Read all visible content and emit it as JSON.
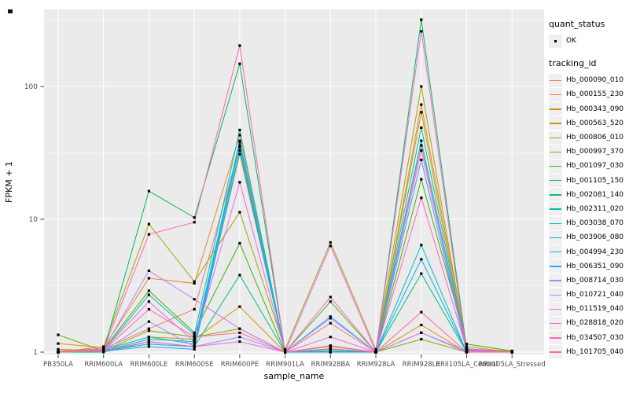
{
  "figure": {
    "panel_bg": "#EBEBEB",
    "grid_color": "#FFFFFF",
    "tick_color": "#333333",
    "axis_text_color": "#4D4D4D",
    "point_color": "#000000"
  },
  "legend": {
    "quant_status_title": "quant_status",
    "quant_status_items": [
      {
        "label": "OK"
      }
    ],
    "tracking_id_title": "tracking_id"
  },
  "chart_data": {
    "type": "line",
    "title": "",
    "xlabel": "sample_name",
    "ylabel": "FPKM + 1",
    "y_scale": "log10",
    "y_ticks": [
      1,
      10,
      100
    ],
    "y_tick_labels": [
      "1",
      "10",
      "100"
    ],
    "y_minor_ticks": [
      3.1623,
      31.623,
      316.23
    ],
    "ylim": [
      0.95,
      380
    ],
    "grid": true,
    "legend_position": "right",
    "point_marker": "filled-square",
    "categories": [
      "PB350LA",
      "RRIM600LA",
      "RRIM600LE",
      "RRIM600SE",
      "RRIM600PE",
      "RRIM901LA",
      "RRIM928BA",
      "RRIM928LA",
      "RRIM928LE",
      "RRII105LA_Control",
      "RRII105LA_Stressed"
    ],
    "series": [
      {
        "name": "Hb_000090_010",
        "color": "#F8766D",
        "values": [
          1.02,
          1.06,
          1.5,
          2.1,
          35,
          1.0,
          1.65,
          1.0,
          36,
          1.05,
          1.0
        ]
      },
      {
        "name": "Hb_000155_230",
        "color": "#EA8331",
        "values": [
          1.16,
          1.08,
          3.6,
          3.3,
          43,
          1.0,
          1.12,
          1.0,
          73,
          1.1,
          1.0
        ]
      },
      {
        "name": "Hb_000343_090",
        "color": "#D89000",
        "values": [
          1.0,
          1.04,
          1.3,
          1.25,
          2.2,
          1.0,
          1.05,
          1.0,
          1.6,
          1.0,
          1.0
        ]
      },
      {
        "name": "Hb_000563_520",
        "color": "#C09B00",
        "values": [
          1.05,
          1.02,
          1.15,
          1.1,
          31,
          1.0,
          1.02,
          1.0,
          64,
          1.02,
          1.0
        ]
      },
      {
        "name": "Hb_000806_010",
        "color": "#A3A500",
        "values": [
          1.0,
          1.1,
          9.2,
          3.4,
          11.3,
          1.05,
          6.7,
          1.05,
          100,
          1.05,
          1.02
        ]
      },
      {
        "name": "Hb_000997_370",
        "color": "#7CAE00",
        "values": [
          1.35,
          1.02,
          1.45,
          1.3,
          1.5,
          1.0,
          1.06,
          1.0,
          1.25,
          1.0,
          1.0
        ]
      },
      {
        "name": "Hb_001097_030",
        "color": "#39B600",
        "values": [
          1.0,
          1.05,
          2.9,
          1.4,
          6.6,
          1.0,
          2.4,
          1.0,
          20,
          1.15,
          1.02
        ]
      },
      {
        "name": "Hb_001105_150",
        "color": "#00BB4E",
        "values": [
          1.0,
          1.02,
          16.3,
          10.3,
          148,
          1.0,
          1.0,
          1.0,
          318,
          1.06,
          1.0
        ]
      },
      {
        "name": "Hb_002081_140",
        "color": "#00BF7D",
        "values": [
          1.0,
          1.0,
          1.2,
          1.1,
          3.8,
          1.0,
          1.0,
          1.0,
          3.9,
          1.0,
          1.0
        ]
      },
      {
        "name": "Hb_002311_020",
        "color": "#00C1A3",
        "values": [
          1.0,
          1.03,
          2.7,
          1.35,
          47,
          1.0,
          1.02,
          1.0,
          49,
          1.04,
          1.0
        ]
      },
      {
        "name": "Hb_003038_070",
        "color": "#00BFC4",
        "values": [
          1.0,
          1.02,
          1.25,
          1.2,
          39,
          1.0,
          1.0,
          1.0,
          6.4,
          1.0,
          1.0
        ]
      },
      {
        "name": "Hb_003906_080",
        "color": "#00BBDA",
        "values": [
          1.0,
          1.04,
          1.3,
          1.15,
          38,
          1.0,
          1.02,
          1.0,
          39,
          1.02,
          1.0
        ]
      },
      {
        "name": "Hb_004994_230",
        "color": "#00B0F6",
        "values": [
          1.0,
          1.02,
          1.1,
          1.05,
          33,
          1.0,
          1.0,
          1.0,
          5.0,
          1.0,
          1.0
        ]
      },
      {
        "name": "Hb_006351_090",
        "color": "#35A2FF",
        "values": [
          1.0,
          1.03,
          1.15,
          1.1,
          36,
          1.0,
          1.85,
          1.0,
          28,
          1.02,
          1.0
        ]
      },
      {
        "name": "Hb_008714_030",
        "color": "#9590FF",
        "values": [
          1.0,
          1.02,
          1.7,
          1.1,
          1.3,
          1.0,
          1.8,
          1.0,
          1.4,
          1.0,
          1.0
        ]
      },
      {
        "name": "Hb_010721_040",
        "color": "#C77CFF",
        "values": [
          1.0,
          1.05,
          4.1,
          2.5,
          1.5,
          1.0,
          1.1,
          1.0,
          1.4,
          1.02,
          1.0
        ]
      },
      {
        "name": "Hb_011519_040",
        "color": "#E76BF3",
        "values": [
          1.0,
          1.04,
          2.4,
          1.2,
          19,
          1.0,
          6.3,
          1.0,
          33,
          1.03,
          1.0
        ]
      },
      {
        "name": "Hb_028818_020",
        "color": "#FA62DB",
        "values": [
          1.0,
          1.02,
          1.2,
          1.1,
          1.2,
          1.0,
          1.3,
          1.0,
          260,
          1.0,
          1.0
        ]
      },
      {
        "name": "Hb_034507_030",
        "color": "#FF62BC",
        "values": [
          1.0,
          1.05,
          7.7,
          9.5,
          203,
          1.0,
          2.6,
          1.0,
          14.5,
          1.05,
          1.0
        ]
      },
      {
        "name": "Hb_101705_040",
        "color": "#FF6A98",
        "values": [
          1.0,
          1.03,
          2.1,
          1.3,
          1.4,
          1.0,
          1.05,
          1.0,
          2.0,
          1.0,
          1.0
        ]
      }
    ]
  }
}
